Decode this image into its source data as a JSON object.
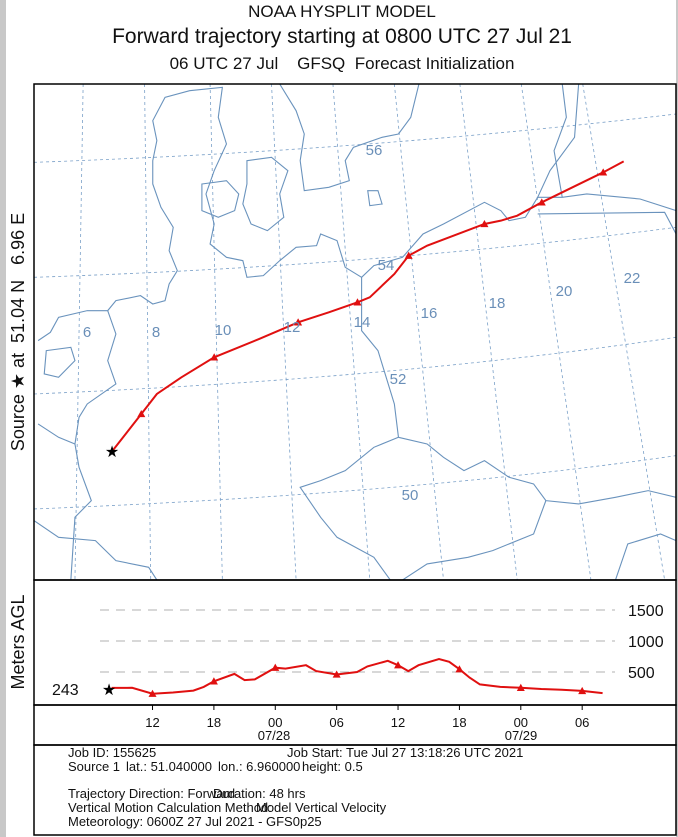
{
  "header": {
    "line1": "NOAA HYSPLIT MODEL",
    "line2": "Forward trajectory starting at 0800 UTC 27 Jul 21",
    "line3": "06 UTC 27 Jul    GFSQ  Forecast Initialization"
  },
  "side_labels": {
    "source": "Source ★ at  51.04 N   6.96 E",
    "height_axis": "Meters AGL"
  },
  "map": {
    "latitude_labels": [
      "56",
      "54",
      "52",
      "50"
    ],
    "longitude_labels": [
      "6",
      "8",
      "10",
      "12",
      "14",
      "16",
      "18",
      "20",
      "22"
    ],
    "source_marker": "star-icon",
    "colors": {
      "trajectory": "#e01010",
      "coastline": "#6a93bd",
      "graticule": "#7aa0c8"
    }
  },
  "height_chart": {
    "type": "line",
    "ylabel": "Meters AGL",
    "y_ticks": [
      "1500",
      "1000",
      "500"
    ],
    "start_height_label": "243",
    "x_tick_labels": [
      "12",
      "18",
      "00",
      "06",
      "12",
      "18",
      "00",
      "06"
    ],
    "date_labels": [
      "07/28",
      "07/29"
    ],
    "points": [
      {
        "t": "2021-07-27T08:00Z",
        "h": 243
      },
      {
        "t": "2021-07-27T10:00Z",
        "h": 245
      },
      {
        "t": "2021-07-27T12:00Z",
        "h": 150
      },
      {
        "t": "2021-07-27T14:00Z",
        "h": 170
      },
      {
        "t": "2021-07-27T16:00Z",
        "h": 200
      },
      {
        "t": "2021-07-27T17:00Z",
        "h": 260
      },
      {
        "t": "2021-07-27T18:00Z",
        "h": 350
      },
      {
        "t": "2021-07-27T20:00Z",
        "h": 470
      },
      {
        "t": "2021-07-27T21:00Z",
        "h": 370
      },
      {
        "t": "2021-07-27T22:00Z",
        "h": 380
      },
      {
        "t": "2021-07-28T00:00Z",
        "h": 570
      },
      {
        "t": "2021-07-28T01:00Z",
        "h": 555
      },
      {
        "t": "2021-07-28T03:00Z",
        "h": 610
      },
      {
        "t": "2021-07-28T04:00Z",
        "h": 515
      },
      {
        "t": "2021-07-28T06:00Z",
        "h": 460
      },
      {
        "t": "2021-07-28T08:00Z",
        "h": 500
      },
      {
        "t": "2021-07-28T09:00Z",
        "h": 590
      },
      {
        "t": "2021-07-28T11:00Z",
        "h": 680
      },
      {
        "t": "2021-07-28T12:00Z",
        "h": 610
      },
      {
        "t": "2021-07-28T13:00Z",
        "h": 515
      },
      {
        "t": "2021-07-28T14:00Z",
        "h": 610
      },
      {
        "t": "2021-07-28T16:00Z",
        "h": 710
      },
      {
        "t": "2021-07-28T17:00Z",
        "h": 665
      },
      {
        "t": "2021-07-28T18:00Z",
        "h": 545
      },
      {
        "t": "2021-07-28T19:00Z",
        "h": 410
      },
      {
        "t": "2021-07-28T20:00Z",
        "h": 300
      },
      {
        "t": "2021-07-28T22:00Z",
        "h": 260
      },
      {
        "t": "2021-07-29T00:00Z",
        "h": 245
      },
      {
        "t": "2021-07-29T02:00Z",
        "h": 225
      },
      {
        "t": "2021-07-29T04:00Z",
        "h": 215
      },
      {
        "t": "2021-07-29T06:00Z",
        "h": 195
      },
      {
        "t": "2021-07-29T08:00Z",
        "h": 160
      }
    ],
    "markers_at": [
      "2021-07-27T12:00Z",
      "2021-07-27T18:00Z",
      "2021-07-28T00:00Z",
      "2021-07-28T06:00Z",
      "2021-07-28T12:00Z",
      "2021-07-28T18:00Z",
      "2021-07-29T00:00Z",
      "2021-07-29T06:00Z"
    ]
  },
  "info": {
    "job_id": "Job ID: 155625",
    "job_start": "Job Start: Tue Jul 27 13:18:26 UTC 2021",
    "source": "Source 1",
    "lat": "lat.: 51.040000",
    "lon": "lon.: 6.960000",
    "height": "height: 0.5",
    "direction": "Trajectory Direction: Forward",
    "duration": "Duration: 48 hrs",
    "vertical_method_label": "Vertical Motion Calculation Method:",
    "vertical_method_value": "Model Vertical Velocity",
    "meteorology": "Meteorology: 0600Z 27 Jul 2021 - GFS0p25"
  }
}
